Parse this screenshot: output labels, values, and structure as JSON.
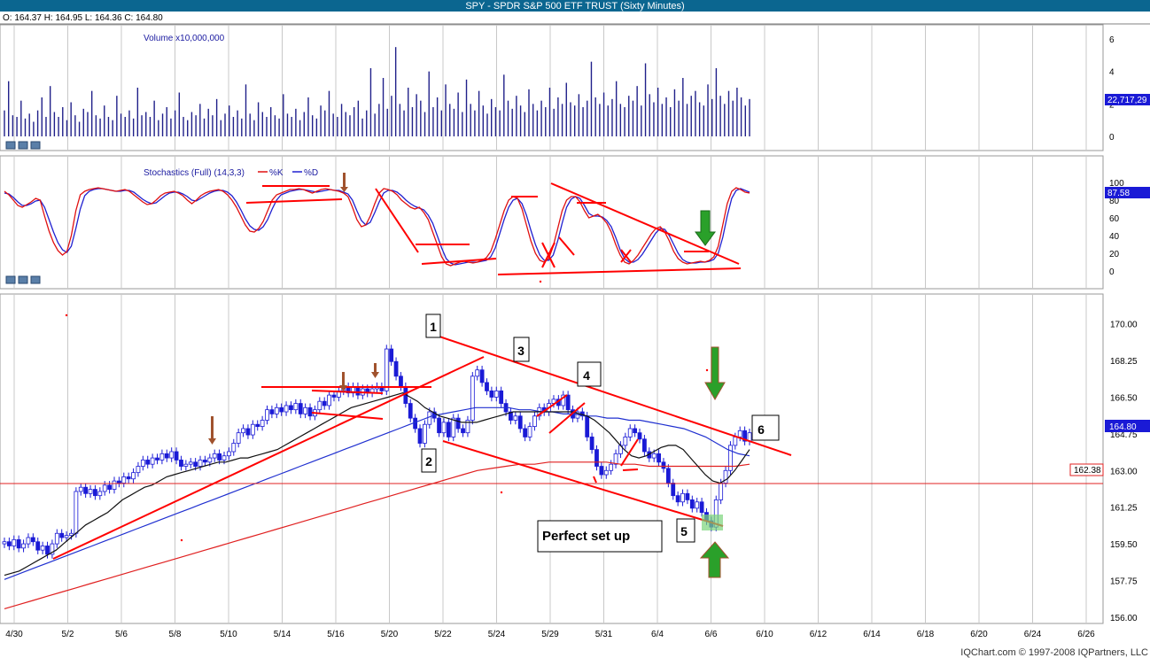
{
  "header": {
    "title": "SPY - SPDR S&P 500 ETF TRUST (Sixty Minutes)",
    "ohlc": "O: 164.37   H: 164.95   L: 164.36   C: 164.80"
  },
  "footer": {
    "copyright": "IQChart.com © 1997-2008 IQPartners, LLC"
  },
  "colors": {
    "header_bg": "#0b6690",
    "candle": "#1a1ad6",
    "volume": "#20208a",
    "percent_k": "#e01010",
    "percent_d": "#2020d0",
    "sma_fast": "#111111",
    "sma_mid": "#2030d0",
    "sma_slow": "#e02020",
    "annotation": "#ff0000",
    "arrow_green": "#2aa02a",
    "arrow_brown": "#a0522d"
  },
  "chart_data": [
    {
      "type": "bar",
      "label": "Volume x10,000,000",
      "y_ticks": [
        "6",
        "4",
        "2",
        "0"
      ],
      "ylim": [
        0,
        6
      ],
      "last_value_label": "22,717,29",
      "values": [
        1.6,
        3.4,
        1.3,
        1.2,
        2.2,
        1.1,
        1.4,
        0.9,
        1.6,
        2.4,
        1.2,
        3.1,
        1.5,
        1.2,
        1.8,
        1.0,
        2.1,
        1.3,
        0.9,
        1.7,
        1.5,
        2.8,
        1.3,
        1.1,
        1.9,
        1.2,
        1.0,
        2.5,
        1.4,
        1.2,
        1.6,
        1.1,
        3.0,
        1.3,
        1.5,
        1.2,
        2.2,
        1.0,
        1.4,
        1.8,
        1.1,
        1.6,
        2.7,
        1.2,
        1.0,
        1.5,
        1.3,
        2.0,
        1.1,
        1.7,
        1.3,
        2.3,
        1.0,
        1.4,
        1.9,
        1.2,
        1.6,
        1.1,
        3.2,
        1.4,
        1.0,
        2.1,
        1.5,
        1.2,
        1.8,
        1.3,
        1.1,
        2.6,
        1.4,
        1.2,
        1.7,
        1.0,
        1.5,
        2.4,
        1.3,
        1.1,
        1.9,
        1.6,
        2.8,
        1.4,
        1.2,
        2.0,
        1.5,
        1.3,
        1.8,
        2.2,
        1.1,
        1.6,
        4.2,
        1.4,
        2.0,
        3.6,
        1.7,
        2.5,
        5.5,
        2.0,
        1.6,
        3.0,
        1.8,
        2.6,
        2.2,
        1.5,
        4.0,
        1.8,
        2.4,
        1.6,
        3.2,
        2.0,
        1.7,
        2.7,
        1.5,
        3.5,
        2.0,
        1.6,
        2.8,
        1.9,
        1.4,
        2.3,
        1.8,
        1.6,
        3.8,
        2.2,
        1.7,
        2.5,
        1.9,
        1.5,
        2.9,
        2.0,
        1.6,
        2.2,
        1.8,
        3.0,
        1.7,
        2.4,
        2.0,
        3.3,
        2.1,
        1.9,
        2.6,
        1.8,
        2.2,
        4.6,
        2.4,
        2.0,
        2.7,
        1.9,
        2.3,
        3.4,
        2.0,
        1.8,
        2.5,
        2.2,
        3.1,
        1.9,
        4.5,
        2.6,
        2.1,
        3.0,
        2.0,
        2.4,
        1.8,
        2.9,
        2.2,
        3.6,
        2.0,
        2.5,
        2.8,
        2.1,
        1.9,
        3.2,
        2.3,
        4.2,
        2.5,
        2.0,
        2.8,
        2.2,
        3.0,
        2.4,
        1.9,
        2.3
      ]
    },
    {
      "type": "line",
      "label": "Stochastics (Full) (14,3,3)",
      "series": [
        {
          "name": "%K",
          "values": [
            90,
            86,
            80,
            74,
            72,
            75,
            78,
            82,
            80,
            62,
            45,
            32,
            23,
            18,
            22,
            40,
            68,
            86,
            90,
            92,
            93,
            94,
            93,
            92,
            91,
            90,
            91,
            92,
            90,
            86,
            82,
            78,
            75,
            76,
            80,
            85,
            88,
            89,
            90,
            88,
            85,
            80,
            76,
            80,
            85,
            88,
            90,
            91,
            92,
            90,
            86,
            80,
            72,
            62,
            52,
            45,
            44,
            48,
            56,
            68,
            80,
            86,
            88,
            90,
            92,
            92,
            93,
            92,
            90,
            88,
            90,
            92,
            93,
            92,
            91,
            90,
            88,
            84,
            72,
            58,
            50,
            52,
            62,
            76,
            88,
            93,
            92,
            90,
            86,
            80,
            76,
            72,
            70,
            72,
            66,
            58,
            44,
            30,
            16,
            8,
            6,
            8,
            10,
            11,
            10,
            9,
            10,
            12,
            15,
            22,
            36,
            52,
            68,
            80,
            84,
            82,
            70,
            52,
            34,
            20,
            12,
            10,
            14,
            28,
            48,
            68,
            80,
            84,
            84,
            78,
            68,
            60,
            62,
            64,
            60,
            54,
            44,
            30,
            18,
            10,
            8,
            12,
            18,
            26,
            34,
            42,
            48,
            50,
            44,
            34,
            22,
            14,
            10,
            8,
            9,
            10,
            11,
            10,
            12,
            16,
            28,
            52,
            76,
            90,
            94,
            92,
            89,
            88
          ]
        },
        {
          "name": "%D",
          "values": [
            88,
            87,
            83,
            78,
            74,
            74,
            76,
            79,
            80,
            72,
            58,
            44,
            32,
            24,
            21,
            28,
            48,
            70,
            85,
            90,
            92,
            93,
            93,
            92,
            91,
            90,
            90,
            91,
            91,
            89,
            85,
            81,
            78,
            76,
            77,
            81,
            85,
            88,
            89,
            89,
            87,
            84,
            80,
            79,
            82,
            85,
            88,
            90,
            91,
            91,
            89,
            85,
            78,
            69,
            59,
            51,
            47,
            46,
            50,
            58,
            70,
            80,
            86,
            88,
            90,
            91,
            92,
            92,
            91,
            90,
            89,
            90,
            91,
            92,
            91,
            91,
            89,
            87,
            80,
            68,
            57,
            52,
            55,
            66,
            78,
            88,
            91,
            91,
            89,
            85,
            80,
            76,
            73,
            71,
            69,
            63,
            54,
            40,
            26,
            14,
            9,
            7,
            8,
            9,
            10,
            10,
            10,
            11,
            12,
            16,
            26,
            42,
            58,
            72,
            80,
            82,
            76,
            63,
            46,
            30,
            18,
            12,
            12,
            18,
            34,
            54,
            72,
            81,
            84,
            82,
            74,
            65,
            62,
            62,
            61,
            57,
            50,
            38,
            24,
            14,
            10,
            10,
            13,
            19,
            27,
            35,
            43,
            48,
            47,
            40,
            30,
            20,
            13,
            10,
            9,
            9,
            10,
            10,
            11,
            13,
            20,
            38,
            62,
            82,
            91,
            93,
            91,
            89
          ]
        }
      ],
      "y_ticks": [
        "100",
        "80",
        "60",
        "40",
        "20",
        "0"
      ],
      "ylim": [
        0,
        100
      ],
      "last_value_label": "87.58",
      "annotations": [
        "red trendlines",
        "red X marks",
        "green down arrow",
        "brown down arrow"
      ]
    },
    {
      "type": "candlestick",
      "x_ticks": [
        "4/30",
        "5/2",
        "5/6",
        "5/8",
        "5/10",
        "5/14",
        "5/16",
        "5/20",
        "5/22",
        "5/24",
        "5/29",
        "5/31",
        "6/4",
        "6/6",
        "6/10",
        "6/12",
        "6/14",
        "6/18",
        "6/20",
        "6/24",
        "6/26"
      ],
      "y_ticks": [
        "170.00",
        "168.25",
        "166.50",
        "164.75",
        "163.00",
        "161.25",
        "159.50",
        "157.75",
        "156.00"
      ],
      "ylim": [
        155.7,
        171.0
      ],
      "last_price_label": "164.80",
      "support_line_label": "162.38",
      "support_line_value": 162.38,
      "close": [
        159.6,
        159.4,
        159.7,
        159.3,
        159.5,
        159.8,
        159.6,
        159.2,
        159.4,
        159.0,
        159.5,
        160.0,
        159.8,
        159.9,
        160.0,
        162.0,
        162.2,
        161.9,
        162.1,
        161.8,
        162.0,
        162.3,
        162.1,
        162.5,
        162.4,
        162.7,
        162.6,
        162.9,
        163.2,
        163.5,
        163.3,
        163.6,
        163.5,
        163.8,
        163.6,
        163.9,
        163.5,
        163.2,
        163.3,
        163.4,
        163.2,
        163.5,
        163.4,
        163.6,
        163.8,
        163.5,
        163.7,
        163.9,
        164.3,
        164.8,
        165.0,
        164.7,
        165.2,
        165.1,
        165.4,
        165.9,
        165.7,
        166.0,
        165.8,
        166.1,
        165.9,
        166.2,
        165.7,
        166.0,
        165.6,
        165.9,
        166.3,
        166.1,
        166.6,
        166.5,
        166.8,
        167.0,
        166.7,
        167.0,
        166.6,
        166.9,
        166.7,
        166.9,
        167.0,
        166.8,
        168.8,
        168.2,
        167.5,
        167.0,
        166.2,
        165.5,
        165.0,
        164.3,
        165.2,
        165.8,
        165.5,
        164.8,
        165.3,
        164.6,
        165.5,
        165.0,
        164.8,
        165.4,
        167.5,
        167.8,
        167.2,
        166.8,
        166.5,
        166.8,
        166.2,
        165.8,
        165.4,
        165.6,
        165.0,
        164.6,
        165.1,
        165.6,
        166.0,
        165.8,
        166.2,
        166.4,
        166.1,
        166.6,
        165.9,
        165.5,
        165.8,
        165.6,
        164.6,
        164.0,
        163.2,
        162.8,
        163.0,
        163.3,
        163.8,
        164.2,
        164.6,
        165.0,
        164.8,
        164.5,
        163.9,
        163.6,
        163.8,
        163.4,
        163.1,
        162.4,
        161.8,
        161.5,
        161.9,
        161.6,
        161.2,
        161.5,
        161.0,
        160.6,
        160.3,
        161.6,
        162.4,
        163.0,
        164.2,
        164.6,
        164.9,
        164.4,
        164.8
      ],
      "sma_fast": [
        158.0,
        158.1,
        158.2,
        158.4,
        158.6,
        158.8,
        159.0,
        159.2,
        159.5,
        159.8,
        160.1,
        160.4,
        160.6,
        160.8,
        161.0,
        161.3,
        161.6,
        161.8,
        162.0,
        162.2,
        162.3,
        162.5,
        162.7,
        162.8,
        162.9,
        163.0,
        163.1,
        163.2,
        163.3,
        163.4,
        163.4,
        163.5,
        163.6,
        163.6,
        163.7,
        163.8,
        163.9,
        164.0,
        164.2,
        164.4,
        164.6,
        164.8,
        165.0,
        165.2,
        165.4,
        165.6,
        165.8,
        166.0,
        166.1,
        166.2,
        166.3,
        166.4,
        166.5,
        166.6,
        166.7,
        166.5,
        166.3,
        166.0,
        165.8,
        165.6,
        165.5,
        165.4,
        165.3,
        165.3,
        165.3,
        165.4,
        165.5,
        165.6,
        165.7,
        165.8,
        165.8,
        165.8,
        165.8,
        165.8,
        165.8,
        165.8,
        165.8,
        165.8,
        165.7,
        165.6,
        165.4,
        165.1,
        164.8,
        164.4,
        164.0,
        163.7,
        163.6,
        163.7,
        163.9,
        164.1,
        164.2,
        164.2,
        164.0,
        163.6,
        163.2,
        162.8,
        162.5,
        162.4,
        162.6,
        163.0,
        163.5,
        164.0
      ],
      "sma_mid": [
        157.8,
        158.0,
        158.2,
        158.4,
        158.6,
        158.8,
        159.0,
        159.2,
        159.4,
        159.6,
        159.8,
        160.0,
        160.2,
        160.4,
        160.6,
        160.8,
        161.0,
        161.2,
        161.4,
        161.6,
        161.8,
        162.0,
        162.2,
        162.4,
        162.6,
        162.8,
        163.0,
        163.2,
        163.4,
        163.6,
        163.8,
        164.0,
        164.2,
        164.4,
        164.6,
        164.8,
        165.0,
        165.2,
        165.4,
        165.6,
        165.7,
        165.8,
        165.9,
        166.0,
        166.0,
        166.0,
        166.0,
        165.9,
        165.9,
        165.8,
        165.8,
        165.7,
        165.7,
        165.6,
        165.6,
        165.5,
        165.5,
        165.4,
        165.4,
        165.3,
        165.2,
        165.1,
        165.0,
        164.8,
        164.6,
        164.3,
        164.0,
        163.8,
        163.7
      ],
      "sma_slow": [
        156.4,
        156.6,
        156.8,
        157.0,
        157.2,
        157.4,
        157.6,
        157.8,
        158.0,
        158.2,
        158.4,
        158.6,
        158.8,
        159.0,
        159.2,
        159.4,
        159.6,
        159.8,
        160.0,
        160.2,
        160.4,
        160.6,
        160.8,
        161.0,
        161.2,
        161.4,
        161.6,
        161.8,
        162.0,
        162.2,
        162.4,
        162.6,
        162.8,
        163.0,
        163.1,
        163.2,
        163.3,
        163.3,
        163.4,
        163.4,
        163.4,
        163.4,
        163.4,
        163.3,
        163.3,
        163.2,
        163.2,
        163.2,
        163.2,
        163.2,
        163.2,
        163.2,
        163.3
      ],
      "annotations": {
        "wave_labels": [
          "1",
          "2",
          "3",
          "4",
          "5",
          "6"
        ],
        "callout": "Perfect set up"
      }
    }
  ]
}
